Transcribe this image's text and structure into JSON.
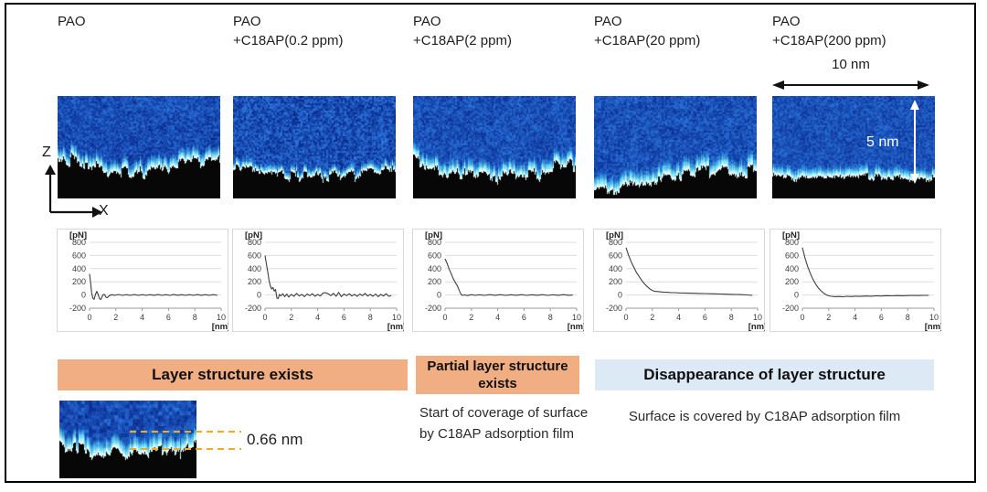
{
  "figure": {
    "columns": [
      {
        "title": "PAO",
        "subtitle": ""
      },
      {
        "title": "PAO",
        "subtitle": "+C18AP(0.2 ppm)"
      },
      {
        "title": "PAO",
        "subtitle": "+C18AP(2 ppm)"
      },
      {
        "title": "PAO",
        "subtitle": "+C18AP(20 ppm)"
      },
      {
        "title": "PAO",
        "subtitle": "+C18AP(200 ppm)"
      }
    ],
    "scale": {
      "width_label": "10 nm",
      "height_label": "5 nm"
    },
    "axes": {
      "vertical": "Z",
      "horizontal": "X"
    },
    "banners": {
      "layer": "Layer structure exists",
      "partial": "Partial layer structure exists",
      "disappear": "Disappearance of layer structure"
    },
    "captions": {
      "partial": "Start of coverage of surface by C18AP adsorption film",
      "disappear": "Surface is covered by C18AP adsorption film"
    },
    "inset": {
      "spacing_label": "0.66 nm"
    },
    "colors": {
      "banner_orange": "#f1ae83",
      "banner_blue": "#dde9f5",
      "dashed_gold": "#f0ab1e",
      "afm_blue": "#1356c8"
    }
  },
  "chart_data": [
    {
      "type": "line",
      "title": "PAO",
      "xlabel": "[nm]",
      "ylabel": "[pN]",
      "xlim": [
        0,
        10
      ],
      "ylim": [
        -200,
        800
      ],
      "xticks": [
        0,
        2,
        4,
        6,
        8,
        10
      ],
      "yticks": [
        800,
        600,
        400,
        200,
        0,
        -200
      ],
      "grid": true,
      "legend": false,
      "points": [
        [
          0,
          320
        ],
        [
          0.08,
          180
        ],
        [
          0.15,
          40
        ],
        [
          0.25,
          -50
        ],
        [
          0.35,
          -65
        ],
        [
          0.45,
          10
        ],
        [
          0.55,
          55
        ],
        [
          0.65,
          10
        ],
        [
          0.75,
          -55
        ],
        [
          0.85,
          -70
        ],
        [
          0.95,
          -25
        ],
        [
          1.05,
          10
        ],
        [
          1.15,
          5
        ],
        [
          1.25,
          -35
        ],
        [
          1.35,
          -40
        ],
        [
          1.5,
          -10
        ],
        [
          1.7,
          6
        ],
        [
          1.9,
          -6
        ],
        [
          2.2,
          8
        ],
        [
          2.5,
          -6
        ],
        [
          2.8,
          6
        ],
        [
          3.1,
          -5
        ],
        [
          3.4,
          7
        ],
        [
          3.7,
          -5
        ],
        [
          4.0,
          5
        ],
        [
          4.3,
          -6
        ],
        [
          4.6,
          6
        ],
        [
          4.9,
          -4
        ],
        [
          5.2,
          7
        ],
        [
          5.5,
          -5
        ],
        [
          5.8,
          5
        ],
        [
          6.1,
          -5
        ],
        [
          6.4,
          7
        ],
        [
          6.7,
          -4
        ],
        [
          7.0,
          6
        ],
        [
          7.3,
          -6
        ],
        [
          7.6,
          5
        ],
        [
          7.9,
          -5
        ],
        [
          8.2,
          7
        ],
        [
          8.5,
          -4
        ],
        [
          8.8,
          6
        ],
        [
          9.1,
          -5
        ],
        [
          9.4,
          5
        ],
        [
          9.7,
          -3
        ]
      ]
    },
    {
      "type": "line",
      "title": "PAO +C18AP(0.2 ppm)",
      "xlabel": "[nm]",
      "ylabel": "[pN]",
      "xlim": [
        0,
        10
      ],
      "ylim": [
        -200,
        800
      ],
      "xticks": [
        0,
        2,
        4,
        6,
        8,
        10
      ],
      "yticks": [
        800,
        600,
        400,
        200,
        0,
        -200
      ],
      "grid": true,
      "legend": false,
      "points": [
        [
          0,
          600
        ],
        [
          0.1,
          480
        ],
        [
          0.2,
          360
        ],
        [
          0.3,
          230
        ],
        [
          0.4,
          140
        ],
        [
          0.5,
          90
        ],
        [
          0.6,
          115
        ],
        [
          0.7,
          60
        ],
        [
          0.8,
          85
        ],
        [
          0.9,
          -45
        ],
        [
          1.0,
          -55
        ],
        [
          1.1,
          10
        ],
        [
          1.2,
          -15
        ],
        [
          1.35,
          20
        ],
        [
          1.5,
          -25
        ],
        [
          1.65,
          15
        ],
        [
          1.8,
          -30
        ],
        [
          2.0,
          10
        ],
        [
          2.2,
          -20
        ],
        [
          2.4,
          25
        ],
        [
          2.6,
          -15
        ],
        [
          2.8,
          10
        ],
        [
          3.0,
          -25
        ],
        [
          3.2,
          15
        ],
        [
          3.4,
          -10
        ],
        [
          3.6,
          20
        ],
        [
          3.8,
          -20
        ],
        [
          4.0,
          10
        ],
        [
          4.2,
          -15
        ],
        [
          4.4,
          30
        ],
        [
          4.6,
          35
        ],
        [
          4.8,
          20
        ],
        [
          5.0,
          -10
        ],
        [
          5.2,
          25
        ],
        [
          5.4,
          -20
        ],
        [
          5.6,
          40
        ],
        [
          5.8,
          -25
        ],
        [
          6.0,
          15
        ],
        [
          6.2,
          -10
        ],
        [
          6.4,
          20
        ],
        [
          6.6,
          -15
        ],
        [
          6.8,
          10
        ],
        [
          7.0,
          -20
        ],
        [
          7.2,
          15
        ],
        [
          7.4,
          -10
        ],
        [
          7.6,
          25
        ],
        [
          7.8,
          -15
        ],
        [
          8.0,
          10
        ],
        [
          8.2,
          -20
        ],
        [
          8.4,
          15
        ],
        [
          8.6,
          -25
        ],
        [
          8.8,
          10
        ],
        [
          9.0,
          -15
        ],
        [
          9.2,
          20
        ],
        [
          9.4,
          -20
        ],
        [
          9.6,
          -10
        ]
      ]
    },
    {
      "type": "line",
      "title": "PAO +C18AP(2 ppm)",
      "xlabel": "[nm]",
      "ylabel": "[pN]",
      "xlim": [
        0,
        10
      ],
      "ylim": [
        -200,
        800
      ],
      "xticks": [
        0,
        2,
        4,
        6,
        8,
        10
      ],
      "yticks": [
        800,
        600,
        400,
        200,
        0,
        -200
      ],
      "grid": true,
      "legend": false,
      "points": [
        [
          0,
          550
        ],
        [
          0.15,
          480
        ],
        [
          0.3,
          400
        ],
        [
          0.45,
          330
        ],
        [
          0.6,
          260
        ],
        [
          0.75,
          200
        ],
        [
          0.9,
          150
        ],
        [
          1.0,
          110
        ],
        [
          1.1,
          60
        ],
        [
          1.2,
          15
        ],
        [
          1.3,
          -5
        ],
        [
          1.5,
          2
        ],
        [
          1.7,
          -8
        ],
        [
          2.0,
          5
        ],
        [
          2.3,
          -5
        ],
        [
          2.6,
          4
        ],
        [
          3.0,
          -5
        ],
        [
          3.4,
          5
        ],
        [
          3.8,
          -4
        ],
        [
          4.2,
          5
        ],
        [
          4.6,
          -5
        ],
        [
          5.0,
          4
        ],
        [
          5.4,
          -4
        ],
        [
          5.8,
          5
        ],
        [
          6.2,
          -5
        ],
        [
          6.6,
          4
        ],
        [
          7.0,
          -4
        ],
        [
          7.4,
          5
        ],
        [
          7.8,
          -5
        ],
        [
          8.2,
          4
        ],
        [
          8.6,
          -4
        ],
        [
          9.0,
          5
        ],
        [
          9.4,
          -4
        ],
        [
          9.7,
          0
        ]
      ]
    },
    {
      "type": "line",
      "title": "PAO +C18AP(20 ppm)",
      "xlabel": "[nm]",
      "ylabel": "[pN]",
      "xlim": [
        0,
        10
      ],
      "ylim": [
        -200,
        800
      ],
      "xticks": [
        0,
        2,
        4,
        6,
        8,
        10
      ],
      "yticks": [
        800,
        600,
        400,
        200,
        0,
        -200
      ],
      "grid": true,
      "legend": false,
      "points": [
        [
          0,
          720
        ],
        [
          0.2,
          600
        ],
        [
          0.4,
          500
        ],
        [
          0.6,
          420
        ],
        [
          0.8,
          340
        ],
        [
          1.0,
          280
        ],
        [
          1.2,
          220
        ],
        [
          1.4,
          170
        ],
        [
          1.6,
          130
        ],
        [
          1.8,
          95
        ],
        [
          2.0,
          70
        ],
        [
          2.2,
          55
        ],
        [
          2.5,
          52
        ],
        [
          2.8,
          45
        ],
        [
          3.1,
          42
        ],
        [
          3.4,
          38
        ],
        [
          3.7,
          36
        ],
        [
          4.0,
          32
        ],
        [
          4.4,
          30
        ],
        [
          4.8,
          28
        ],
        [
          5.2,
          26
        ],
        [
          5.6,
          24
        ],
        [
          6.0,
          22
        ],
        [
          6.4,
          20
        ],
        [
          6.8,
          18
        ],
        [
          7.2,
          15
        ],
        [
          7.6,
          13
        ],
        [
          8.0,
          10
        ],
        [
          8.4,
          8
        ],
        [
          8.8,
          5
        ],
        [
          9.2,
          2
        ],
        [
          9.6,
          -5
        ]
      ]
    },
    {
      "type": "line",
      "title": "PAO +C18AP(200 ppm)",
      "xlabel": "[nm]",
      "ylabel": "[pN]",
      "xlim": [
        0,
        10
      ],
      "ylim": [
        -200,
        800
      ],
      "xticks": [
        0,
        2,
        4,
        6,
        8,
        10
      ],
      "yticks": [
        800,
        600,
        400,
        200,
        0,
        -200
      ],
      "grid": true,
      "legend": false,
      "points": [
        [
          0,
          720
        ],
        [
          0.2,
          560
        ],
        [
          0.4,
          430
        ],
        [
          0.6,
          330
        ],
        [
          0.8,
          240
        ],
        [
          1.0,
          170
        ],
        [
          1.2,
          110
        ],
        [
          1.4,
          65
        ],
        [
          1.6,
          30
        ],
        [
          1.8,
          5
        ],
        [
          2.0,
          -12
        ],
        [
          2.2,
          -20
        ],
        [
          2.5,
          -25
        ],
        [
          2.8,
          -22
        ],
        [
          3.1,
          -26
        ],
        [
          3.4,
          -20
        ],
        [
          3.7,
          -23
        ],
        [
          4.0,
          -18
        ],
        [
          4.4,
          -21
        ],
        [
          4.8,
          -15
        ],
        [
          5.2,
          -18
        ],
        [
          5.6,
          -12
        ],
        [
          6.0,
          -15
        ],
        [
          6.4,
          -10
        ],
        [
          6.8,
          -13
        ],
        [
          7.2,
          -8
        ],
        [
          7.6,
          -11
        ],
        [
          8.0,
          -8
        ],
        [
          8.4,
          -6
        ],
        [
          8.8,
          -9
        ],
        [
          9.2,
          -5
        ],
        [
          9.6,
          -5
        ]
      ]
    }
  ]
}
